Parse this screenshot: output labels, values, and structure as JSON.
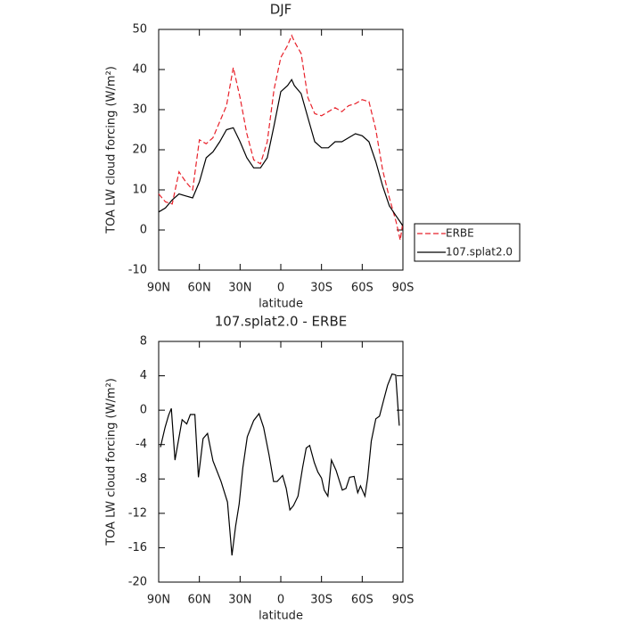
{
  "chart_data": [
    {
      "type": "line",
      "title": "DJF",
      "xlabel": "latitude",
      "ylabel": "TOA LW cloud forcing (W/m²)",
      "x": [
        90,
        85,
        80,
        75,
        70,
        65,
        60,
        55,
        50,
        45,
        40,
        35,
        30,
        25,
        20,
        15,
        10,
        5,
        0,
        -5,
        -8,
        -10,
        -15,
        -20,
        -25,
        -30,
        -35,
        -40,
        -45,
        -50,
        -55,
        -60,
        -65,
        -70,
        -75,
        -80,
        -85,
        -88,
        -90
      ],
      "series": [
        {
          "name": "ERBE",
          "color": "#e8212a",
          "dashed": true,
          "values": [
            9,
            7,
            6.5,
            14.5,
            12,
            10,
            22.5,
            21.5,
            23,
            27,
            31,
            40.5,
            33,
            24,
            17.5,
            16.5,
            22,
            35,
            43,
            46,
            48.5,
            47,
            44,
            33,
            29,
            28.5,
            29.5,
            30.5,
            29.5,
            31,
            31.5,
            32.5,
            32,
            25,
            15,
            8,
            2,
            -2.5,
            2
          ]
        },
        {
          "name": "107.splat2.0",
          "color": "#000000",
          "dashed": false,
          "values": [
            4.5,
            5.5,
            7.5,
            9,
            8.5,
            8,
            12,
            18,
            19.5,
            22,
            25,
            25.5,
            22,
            18,
            15.5,
            15.5,
            18,
            26,
            34.5,
            36,
            37.5,
            36,
            34,
            28,
            22,
            20.5,
            20.5,
            22,
            22,
            23,
            24,
            23.5,
            22,
            17,
            11,
            6,
            3.5,
            2,
            1
          ]
        }
      ],
      "xlim": [
        90,
        -90
      ],
      "xticks": [
        {
          "value": 90,
          "label": "90N"
        },
        {
          "value": 60,
          "label": "60N"
        },
        {
          "value": 30,
          "label": "30N"
        },
        0,
        {
          "value": -30,
          "label": "30S"
        },
        {
          "value": -60,
          "label": "60S"
        },
        {
          "value": -90,
          "label": "90S"
        }
      ],
      "ylim": [
        -10,
        50
      ],
      "yticks": [
        -10,
        0,
        10,
        20,
        30,
        40,
        50
      ],
      "legend": "right"
    },
    {
      "type": "line",
      "title": "107.splat2.0 - ERBE",
      "xlabel": "latitude",
      "ylabel": "TOA LW cloud forcing (W/m²)",
      "x": [
        88.7,
        85.3,
        82.7,
        80.7,
        78,
        72.7,
        69.3,
        66.7,
        63.3,
        60.7,
        57.3,
        54,
        50,
        44,
        39.3,
        36,
        33.3,
        30.7,
        28,
        24.7,
        20,
        16,
        12.7,
        8.7,
        5.3,
        2.7,
        -1.3,
        -4,
        -6.7,
        -9.3,
        -12.7,
        -16,
        -18.7,
        -21.3,
        -24.7,
        -27.3,
        -30,
        -32,
        -34.7,
        -37.3,
        -40.7,
        -45.3,
        -48,
        -50.7,
        -54,
        -56.7,
        -58.7,
        -62,
        -64,
        -66.7,
        -70,
        -72.7,
        -76,
        -78.7,
        -82,
        -84.7,
        -87.3
      ],
      "series": [
        {
          "name": "107.splat2.0 - ERBE",
          "color": "#000000",
          "dashed": false,
          "values": [
            -4.3,
            -2,
            -0.6,
            0.2,
            -5.8,
            -1.1,
            -1.6,
            -0.5,
            -0.5,
            -7.8,
            -3.3,
            -2.7,
            -5.9,
            -8.3,
            -10.7,
            -16.9,
            -13.5,
            -10.9,
            -6.7,
            -3.1,
            -1.2,
            -0.4,
            -2,
            -5.2,
            -8.3,
            -8.3,
            -7.6,
            -9.1,
            -11.6,
            -11.1,
            -10,
            -6.7,
            -4.4,
            -4.1,
            -6.1,
            -7.2,
            -7.9,
            -9.3,
            -10,
            -5.8,
            -7,
            -9.3,
            -9.1,
            -7.8,
            -7.7,
            -9.6,
            -8.8,
            -10,
            -7.9,
            -3.6,
            -1,
            -0.7,
            1.3,
            2.9,
            4.2,
            4.1,
            -1.8
          ]
        }
      ],
      "xlim": [
        90,
        -90
      ],
      "xticks": [
        {
          "value": 90,
          "label": "90N"
        },
        {
          "value": 60,
          "label": "60N"
        },
        {
          "value": 30,
          "label": "30N"
        },
        0,
        {
          "value": -30,
          "label": "30S"
        },
        {
          "value": -60,
          "label": "60S"
        },
        {
          "value": -90,
          "label": "90S"
        }
      ],
      "ylim": [
        -20,
        8
      ],
      "yticks": [
        -20,
        -16,
        -12,
        -8,
        -4,
        0,
        4,
        8
      ]
    }
  ]
}
